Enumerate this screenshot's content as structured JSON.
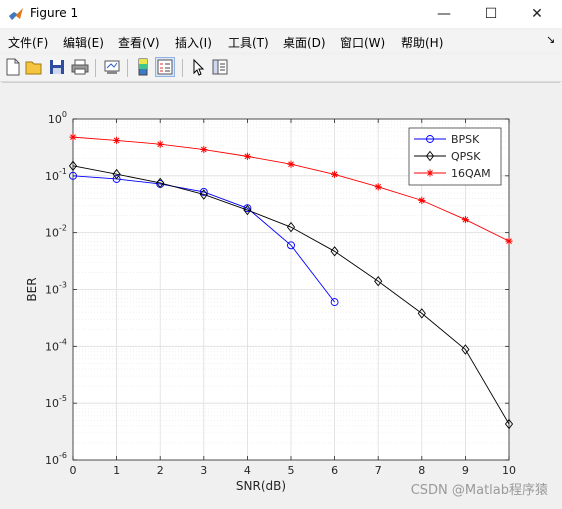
{
  "window": {
    "title": "Figure 1",
    "controls": {
      "minimize": "—",
      "maximize": "☐",
      "close": "✕"
    }
  },
  "menu": {
    "items": [
      "文件(F)",
      "编辑(E)",
      "查看(V)",
      "插入(I)",
      "工具(T)",
      "桌面(D)",
      "窗口(W)",
      "帮助(H)"
    ],
    "dock_glyph": "↘"
  },
  "toolbar": {
    "buttons": [
      "new-figure",
      "open-file",
      "save",
      "print",
      "link-plot",
      "insert-colorbar",
      "insert-legend",
      "edit-plot",
      "property-inspector"
    ]
  },
  "chart_data": {
    "type": "line",
    "xlabel": "SNR(dB)",
    "ylabel": "BER",
    "xlim": [
      0,
      10
    ],
    "ylim": [
      1e-06,
      1
    ],
    "yscale": "log",
    "xticks": [
      0,
      1,
      2,
      3,
      4,
      5,
      6,
      7,
      8,
      9,
      10
    ],
    "yticks": [
      {
        "value": 1,
        "base": "10",
        "exp": "0"
      },
      {
        "value": 0.1,
        "base": "10",
        "exp": "-1"
      },
      {
        "value": 0.01,
        "base": "10",
        "exp": "-2"
      },
      {
        "value": 0.001,
        "base": "10",
        "exp": "-3"
      },
      {
        "value": 0.0001,
        "base": "10",
        "exp": "-4"
      },
      {
        "value": 1e-05,
        "base": "10",
        "exp": "-5"
      },
      {
        "value": 1e-06,
        "base": "10",
        "exp": "-6"
      }
    ],
    "grid": true,
    "legend_position": "top-right",
    "series": [
      {
        "name": "BPSK",
        "color": "#0000ff",
        "marker": "circle",
        "x": [
          0,
          1,
          2,
          3,
          4,
          5,
          6
        ],
        "y": [
          0.1,
          0.088,
          0.072,
          0.052,
          0.027,
          0.006,
          0.0006
        ]
      },
      {
        "name": "QPSK",
        "color": "#000000",
        "marker": "diamond",
        "x": [
          0,
          1,
          2,
          3,
          4,
          5,
          6,
          7,
          8,
          9,
          10
        ],
        "y": [
          0.15,
          0.107,
          0.075,
          0.047,
          0.025,
          0.0125,
          0.0047,
          0.0014,
          0.00038,
          8.8e-05,
          4.3e-06
        ]
      },
      {
        "name": "16QAM",
        "color": "#ff0000",
        "marker": "star",
        "x": [
          0,
          1,
          2,
          3,
          4,
          5,
          6,
          7,
          8,
          9,
          10
        ],
        "y": [
          0.48,
          0.42,
          0.36,
          0.29,
          0.22,
          0.16,
          0.106,
          0.064,
          0.037,
          0.017,
          0.0071
        ]
      }
    ]
  },
  "watermark": "CSDN @Matlab程序猿"
}
